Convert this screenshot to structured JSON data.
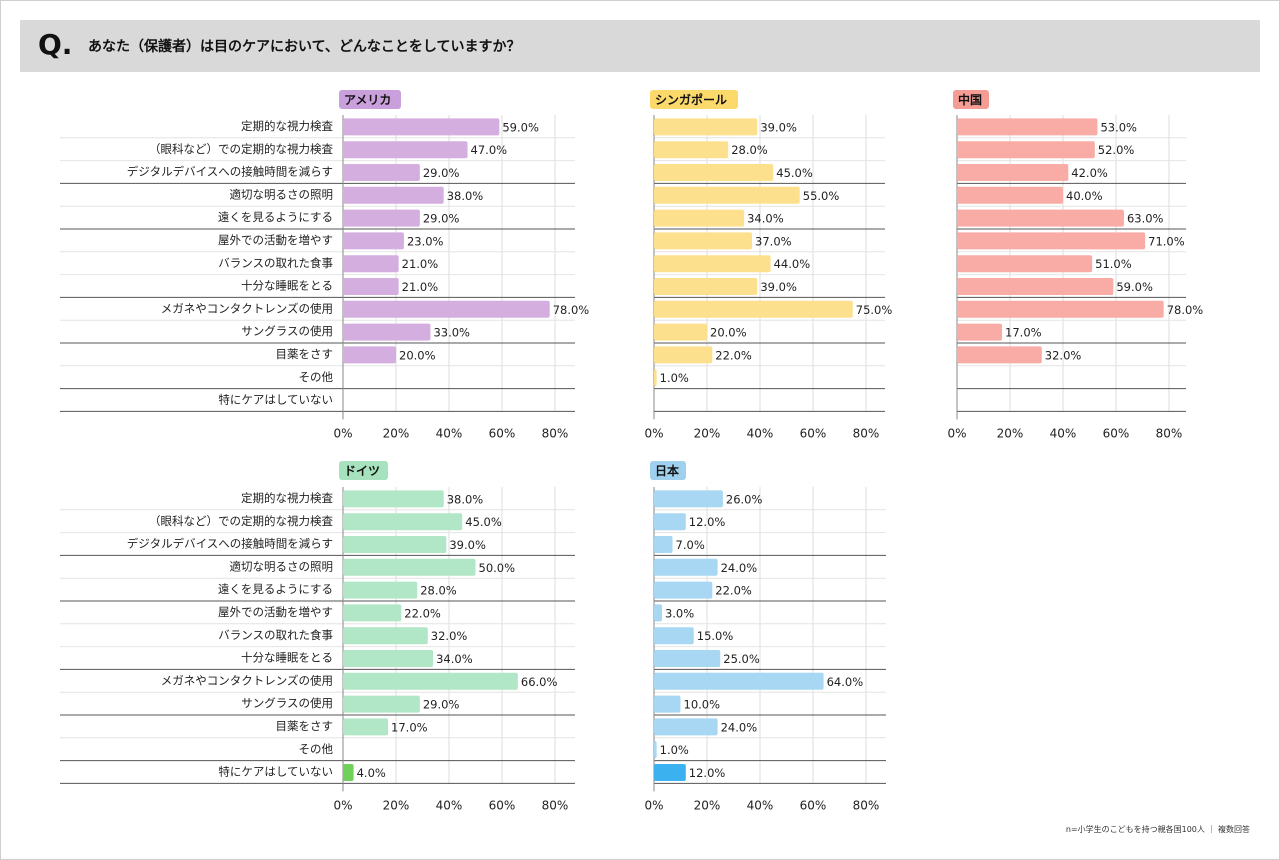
{
  "header": {
    "q_mark": "Q.",
    "question": "あなた（保護者）は目のケアにおいて、どんなことをしていますか？"
  },
  "footnote": "n=小学生のこどもを持つ親各国100人 ｜ 複数回答",
  "chart_data": {
    "type": "bar",
    "orientation": "horizontal",
    "categories": [
      "定期的な視力検査",
      "（眼科など）での定期的な視力検査",
      "デジタルデバイスへの接触時間を減らす",
      "適切な明るさの照明",
      "遠くを見るようにする",
      "屋外での活動を増やす",
      "バランスの取れた食事",
      "十分な睡眠をとる",
      "メガネやコンタクトレンズの使用",
      "サングラスの使用",
      "目薬をさす",
      "その他",
      "特にケアはしていない"
    ],
    "x_ticks": [
      "0%",
      "20%",
      "40%",
      "60%",
      "80%"
    ],
    "xlim": [
      0,
      80
    ],
    "value_format": "percent_one_decimal",
    "panels": [
      {
        "name": "アメリカ",
        "color": "#d5aee0",
        "label_color": "#c9a0dc",
        "values": [
          59,
          47,
          29,
          38,
          29,
          23,
          21,
          21,
          78,
          33,
          20,
          null,
          null
        ]
      },
      {
        "name": "シンガポール",
        "color": "#fde08e",
        "label_color": "#fcd96b",
        "values": [
          39,
          28,
          45,
          55,
          34,
          37,
          44,
          39,
          75,
          20,
          22,
          1,
          null
        ]
      },
      {
        "name": "中国",
        "color": "#f9aca6",
        "label_color": "#f59d95",
        "values": [
          53,
          52,
          42,
          40,
          63,
          71,
          51,
          59,
          78,
          17,
          32,
          null,
          null
        ]
      },
      {
        "name": "ドイツ",
        "color": "#b1e6c6",
        "label_color": "#a6e2bd",
        "highlight_color": "#6fd15a",
        "values": [
          38,
          45,
          39,
          50,
          28,
          22,
          32,
          34,
          66,
          29,
          17,
          null,
          4
        ]
      },
      {
        "name": "日本",
        "color": "#a7d7f2",
        "label_color": "#9fd1ee",
        "highlight_color": "#3bb2ef",
        "values": [
          26,
          12,
          7,
          24,
          22,
          3,
          15,
          25,
          64,
          10,
          24,
          1,
          12
        ]
      }
    ]
  }
}
